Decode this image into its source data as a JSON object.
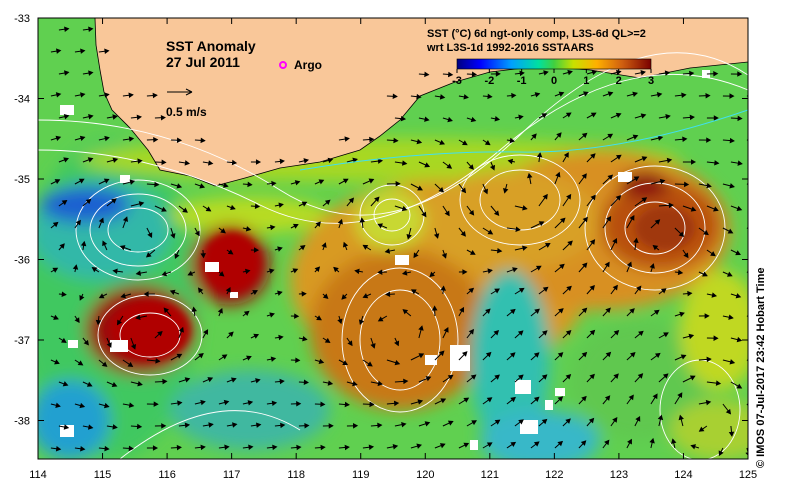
{
  "title": "SST Anomaly",
  "date": "27 Jul 2011",
  "argo_label": "Argo",
  "velocity_scale_label": "0.5 m/s",
  "product_line1": "SST (°C) 6d ngt-only comp, L3S-6d QL>=2",
  "product_line2": "wrt L3S-1d 1992-2016 SSTAARS",
  "colorbar": {
    "ticks": [
      "-3",
      "-2",
      "-1",
      "0",
      "1",
      "2",
      "3"
    ],
    "min": -3,
    "max": 3
  },
  "axes": {
    "x_ticks": [
      "114",
      "115",
      "116",
      "117",
      "118",
      "119",
      "120",
      "121",
      "122",
      "123",
      "124",
      "125"
    ],
    "y_ticks": [
      "-33",
      "-34",
      "-35",
      "-36",
      "-37",
      "-38"
    ]
  },
  "credit": "© IMOS 07-Jul-2017 23:42 Hobart Time",
  "colors": {
    "land": "#f9c799",
    "argo": "#ff00ff",
    "contour": "#ffffff"
  }
}
